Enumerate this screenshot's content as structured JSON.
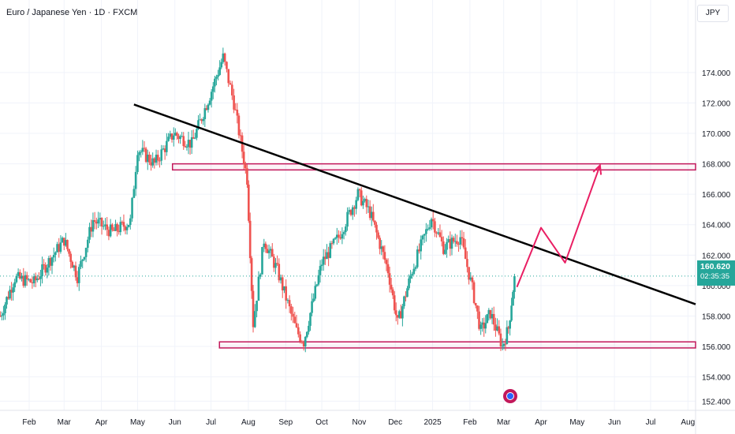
{
  "header": {
    "title": "Euro / Japanese Yen · 1D · FXCM",
    "currency": "JPY"
  },
  "price_label": {
    "price": "160.620",
    "countdown": "02:35:35"
  },
  "colors": {
    "up": "#26a69a",
    "down": "#ef5350",
    "zone": "#c2185b",
    "projection": "#e91e63",
    "trendline": "#000000",
    "grid": "#f0f3fa"
  },
  "chart_data": {
    "type": "candlestick",
    "title": "Euro / Japanese Yen · 1D · FXCM",
    "ylim": [
      151.8,
      176.9
    ],
    "y_ticks": [
      152.4,
      154.0,
      156.0,
      158.0,
      160.0,
      162.0,
      164.0,
      166.0,
      168.0,
      170.0,
      172.0,
      174.0
    ],
    "y_tick_labels": [
      "152.400",
      "154.000",
      "156.000",
      "158.000",
      "160.000",
      "162.000",
      "164.000",
      "166.000",
      "168.000",
      "170.000",
      "172.000",
      "174.000"
    ],
    "x_ticks": [
      "Feb",
      "Mar",
      "Apr",
      "May",
      "Jun",
      "Jul",
      "Aug",
      "Sep",
      "Oct",
      "Nov",
      "Dec",
      "2025",
      "Feb",
      "Mar",
      "Apr",
      "May",
      "Jun",
      "Jul",
      "Aug"
    ],
    "last_price": 160.62,
    "grid": true,
    "approx_path": [
      {
        "date": "2024-01-08",
        "close": 158.0
      },
      {
        "date": "2024-01-20",
        "close": 160.5
      },
      {
        "date": "2024-02-05",
        "close": 160.2
      },
      {
        "date": "2024-02-20",
        "close": 161.9
      },
      {
        "date": "2024-03-01",
        "close": 163.0
      },
      {
        "date": "2024-03-12",
        "close": 160.6
      },
      {
        "date": "2024-03-25",
        "close": 164.3
      },
      {
        "date": "2024-04-10",
        "close": 163.5
      },
      {
        "date": "2024-04-25",
        "close": 164.2
      },
      {
        "date": "2024-05-01",
        "close": 169.0
      },
      {
        "date": "2024-05-15",
        "close": 168.0
      },
      {
        "date": "2024-05-31",
        "close": 170.0
      },
      {
        "date": "2024-06-15",
        "close": 169.3
      },
      {
        "date": "2024-06-30",
        "close": 172.5
      },
      {
        "date": "2024-07-11",
        "close": 175.0
      },
      {
        "date": "2024-07-20",
        "close": 172.0
      },
      {
        "date": "2024-07-31",
        "close": 167.0
      },
      {
        "date": "2024-08-05",
        "close": 157.5
      },
      {
        "date": "2024-08-14",
        "close": 163.0
      },
      {
        "date": "2024-08-25",
        "close": 161.0
      },
      {
        "date": "2024-09-10",
        "close": 157.0
      },
      {
        "date": "2024-09-16",
        "close": 156.3
      },
      {
        "date": "2024-10-01",
        "close": 161.5
      },
      {
        "date": "2024-10-15",
        "close": 163.2
      },
      {
        "date": "2024-10-31",
        "close": 166.0
      },
      {
        "date": "2024-11-10",
        "close": 164.8
      },
      {
        "date": "2024-11-25",
        "close": 161.0
      },
      {
        "date": "2024-12-03",
        "close": 157.5
      },
      {
        "date": "2024-12-15",
        "close": 161.0
      },
      {
        "date": "2024-12-31",
        "close": 164.5
      },
      {
        "date": "2025-01-10",
        "close": 162.5
      },
      {
        "date": "2025-01-24",
        "close": 163.2
      },
      {
        "date": "2025-02-03",
        "close": 159.8
      },
      {
        "date": "2025-02-10",
        "close": 157.0
      },
      {
        "date": "2025-02-18",
        "close": 158.2
      },
      {
        "date": "2025-02-28",
        "close": 156.0
      },
      {
        "date": "2025-03-05",
        "close": 157.2
      },
      {
        "date": "2025-03-10",
        "close": 160.62
      }
    ],
    "annotations": {
      "trendline": [
        {
          "date": "2024-04-28",
          "price": 171.9
        },
        {
          "date": "2025-08-10",
          "price": 158.7
        }
      ],
      "resistance_zone": {
        "from": "2024-05-30",
        "to": "2025-08-31",
        "low": 167.6,
        "high": 168.0
      },
      "support_zone": {
        "from": "2024-07-08",
        "to": "2025-08-31",
        "low": 155.9,
        "high": 156.3
      },
      "projection": [
        {
          "date": "2025-03-12",
          "price": 159.9
        },
        {
          "date": "2025-04-01",
          "price": 163.8
        },
        {
          "date": "2025-04-21",
          "price": 161.5
        },
        {
          "date": "2025-05-20",
          "price": 167.9
        }
      ]
    }
  }
}
